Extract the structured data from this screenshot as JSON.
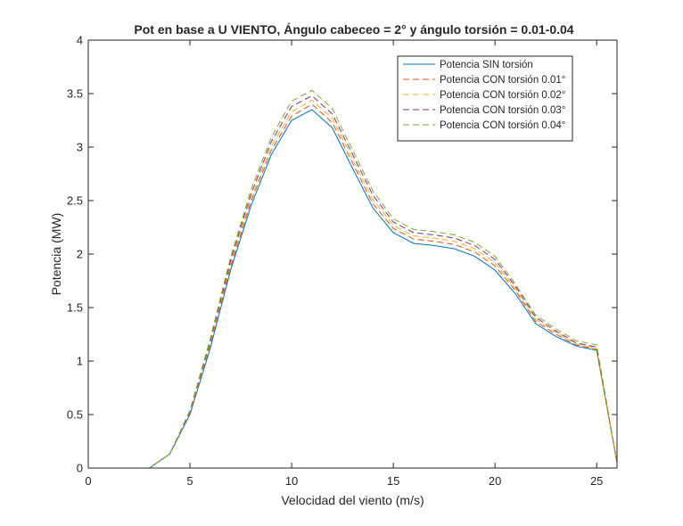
{
  "chart_data": {
    "type": "line",
    "title": "Pot en base a U VIENTO, Ángulo cabeceo = 2° y ángulo torsión = 0.01-0.04",
    "xlabel": "Velocidad del viento (m/s)",
    "ylabel": "Potencia (MW)",
    "xlim": [
      0,
      26
    ],
    "ylim": [
      0,
      4
    ],
    "xticks": [
      0,
      5,
      10,
      15,
      20,
      25
    ],
    "yticks": [
      0,
      0.5,
      1,
      1.5,
      2,
      2.5,
      3,
      3.5,
      4
    ],
    "xtick_labels": [
      "0",
      "5",
      "10",
      "15",
      "20",
      "25"
    ],
    "ytick_labels": [
      "0",
      "0.5",
      "1",
      "1.5",
      "2",
      "2.5",
      "3",
      "3.5",
      "4"
    ],
    "grid": false,
    "legend_position": "top-right",
    "x": [
      0,
      1,
      2,
      3,
      4,
      5,
      6,
      7,
      8,
      9,
      10,
      11,
      12,
      13,
      14,
      15,
      16,
      17,
      18,
      19,
      20,
      21,
      22,
      23,
      24,
      25,
      26
    ],
    "series": [
      {
        "name": "Potencia SIN torsión",
        "color": "#0072bd",
        "style": "solid",
        "values": [
          0,
          0,
          0,
          0,
          0.13,
          0.5,
          1.12,
          1.85,
          2.45,
          2.93,
          3.25,
          3.35,
          3.18,
          2.8,
          2.43,
          2.2,
          2.1,
          2.08,
          2.05,
          1.98,
          1.85,
          1.63,
          1.35,
          1.23,
          1.14,
          1.1,
          0.05
        ]
      },
      {
        "name": "Potencia CON torsión 0.01°",
        "color": "#d95319",
        "style": "dashed",
        "values": [
          0,
          0,
          0,
          0,
          0.13,
          0.51,
          1.15,
          1.88,
          2.49,
          2.97,
          3.29,
          3.4,
          3.23,
          2.85,
          2.47,
          2.24,
          2.14,
          2.12,
          2.09,
          2.02,
          1.89,
          1.66,
          1.37,
          1.25,
          1.15,
          1.11,
          0.05
        ]
      },
      {
        "name": "Potencia CON torsión 0.02°",
        "color": "#edb120",
        "style": "dashed",
        "values": [
          0,
          0,
          0,
          0,
          0.13,
          0.52,
          1.17,
          1.91,
          2.52,
          3.01,
          3.33,
          3.44,
          3.27,
          2.89,
          2.51,
          2.27,
          2.17,
          2.15,
          2.12,
          2.05,
          1.92,
          1.68,
          1.39,
          1.27,
          1.16,
          1.12,
          0.05
        ]
      },
      {
        "name": "Potencia CON torsión 0.03°",
        "color": "#7e2f8e",
        "style": "dashed",
        "values": [
          0,
          0,
          0,
          0,
          0.13,
          0.53,
          1.19,
          1.94,
          2.56,
          3.05,
          3.38,
          3.48,
          3.31,
          2.93,
          2.55,
          2.3,
          2.2,
          2.18,
          2.15,
          2.08,
          1.95,
          1.7,
          1.41,
          1.28,
          1.17,
          1.13,
          0.05
        ]
      },
      {
        "name": "Potencia CON torsión 0.04°",
        "color": "#77ac30",
        "style": "dashed",
        "values": [
          0,
          0,
          0,
          0,
          0.13,
          0.54,
          1.21,
          1.97,
          2.6,
          3.09,
          3.43,
          3.53,
          3.36,
          2.97,
          2.59,
          2.33,
          2.23,
          2.21,
          2.18,
          2.11,
          1.98,
          1.72,
          1.43,
          1.3,
          1.19,
          1.15,
          0.05
        ]
      }
    ]
  }
}
